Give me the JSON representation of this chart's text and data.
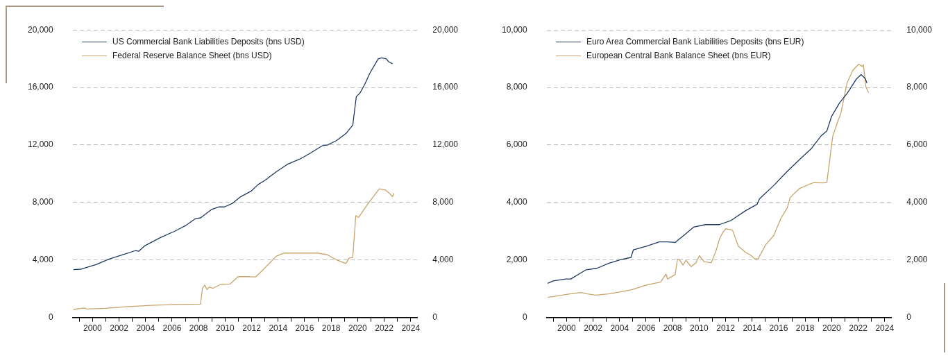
{
  "chart_data": [
    {
      "type": "line",
      "legend": "top left",
      "grid": "y",
      "xlim": [
        1998.5,
        2024.5
      ],
      "xticks": [
        {
          "value": 1999,
          "label": null
        },
        2000,
        {
          "value": 2001,
          "label": null
        },
        2002,
        {
          "value": 2003,
          "label": null
        },
        2004,
        {
          "value": 2005,
          "label": null
        },
        2006,
        {
          "value": 2007,
          "label": null
        },
        2008,
        {
          "value": 2009,
          "label": null
        },
        2010,
        {
          "value": 2011,
          "label": null
        },
        2012,
        {
          "value": 2013,
          "label": null
        },
        2014,
        {
          "value": 2015,
          "label": null
        },
        2016,
        {
          "value": 2017,
          "label": null
        },
        2018,
        {
          "value": 2019,
          "label": null
        },
        2020,
        {
          "value": 2021,
          "label": null
        },
        2022,
        {
          "value": 2023,
          "label": null
        },
        2024
      ],
      "ylim": [
        0,
        20000
      ],
      "yticks": [
        0,
        {
          "value": 4000,
          "label": "4,000"
        },
        {
          "value": 8000,
          "label": "8,000"
        },
        {
          "value": 12000,
          "label": "12,000"
        },
        {
          "value": 16000,
          "label": "16,000"
        },
        {
          "value": 20000,
          "label": "20,000"
        }
      ],
      "y2lim": [
        0,
        20000
      ],
      "y2ticks": [
        0,
        {
          "value": 4000,
          "label": "4,000"
        },
        {
          "value": 8000,
          "label": "8,000"
        },
        {
          "value": 12000,
          "label": "12,000"
        },
        {
          "value": 16000,
          "label": "16,000"
        },
        {
          "value": 20000,
          "label": "20,000"
        }
      ],
      "series": [
        {
          "name": "US Commercial Bank Liabilities Deposits (bns USD)",
          "color": "#1f3864",
          "x": [
            1998.55,
            1999.13,
            2000.26,
            2001.22,
            2002.36,
            2003.23,
            2003.49,
            2003.93,
            2005.15,
            2006.2,
            2007.07,
            2007.77,
            2008.15,
            2008.99,
            2009.51,
            2009.95,
            2010.56,
            2011.17,
            2011.95,
            2012.48,
            2013.0,
            2013.87,
            2014.75,
            2015.62,
            2016.32,
            2017.36,
            2017.71,
            2018.41,
            2019.11,
            2019.63,
            2019.9,
            2020.16,
            2020.51,
            2020.94,
            2021.55,
            2021.81,
            2022.16,
            2022.34,
            2022.63
          ],
          "values": [
            3330,
            3360,
            3680,
            4050,
            4390,
            4650,
            4610,
            4980,
            5570,
            6000,
            6420,
            6880,
            6930,
            7520,
            7690,
            7690,
            7940,
            8400,
            8780,
            9240,
            9540,
            10140,
            10680,
            11010,
            11370,
            11960,
            11990,
            12310,
            12790,
            13380,
            15370,
            15590,
            16170,
            17030,
            17990,
            18060,
            17990,
            17790,
            17650
          ]
        },
        {
          "name": "Federal Reserve Balance Sheet (bns USD)",
          "color": "#c9a46a",
          "x": [
            1998.55,
            1999.39,
            1999.56,
            2000.96,
            2002.71,
            2004.45,
            2006.2,
            2008.15,
            2008.29,
            2008.46,
            2008.64,
            2008.81,
            2009.08,
            2009.69,
            2010.38,
            2011.0,
            2011.43,
            2012.3,
            2012.83,
            2013.87,
            2014.49,
            2015.79,
            2017.02,
            2017.71,
            2018.41,
            2019.11,
            2019.37,
            2019.63,
            2019.86,
            2020.07,
            2020.86,
            2021.64,
            2022.08,
            2022.43,
            2022.63,
            2022.74
          ],
          "values": [
            560,
            660,
            590,
            640,
            760,
            840,
            900,
            930,
            2030,
            2250,
            1940,
            2110,
            2030,
            2310,
            2330,
            2850,
            2840,
            2820,
            3290,
            4270,
            4490,
            4480,
            4480,
            4360,
            4000,
            3750,
            4140,
            4170,
            7090,
            6960,
            8020,
            8950,
            8870,
            8610,
            8400,
            8650
          ]
        }
      ]
    },
    {
      "type": "line",
      "legend": "top left",
      "grid": "y",
      "xlim": [
        1998.5,
        2024.5
      ],
      "xticks": [
        {
          "value": 1999,
          "label": null
        },
        2000,
        {
          "value": 2001,
          "label": null
        },
        2002,
        {
          "value": 2003,
          "label": null
        },
        2004,
        {
          "value": 2005,
          "label": null
        },
        2006,
        {
          "value": 2007,
          "label": null
        },
        2008,
        {
          "value": 2009,
          "label": null
        },
        2010,
        {
          "value": 2011,
          "label": null
        },
        2012,
        {
          "value": 2013,
          "label": null
        },
        2014,
        {
          "value": 2015,
          "label": null
        },
        2016,
        {
          "value": 2017,
          "label": null
        },
        2018,
        {
          "value": 2019,
          "label": null
        },
        2020,
        {
          "value": 2021,
          "label": null
        },
        2022,
        {
          "value": 2023,
          "label": null
        },
        2024
      ],
      "ylim": [
        0,
        10000
      ],
      "yticks": [
        0,
        {
          "value": 2000,
          "label": "2,000"
        },
        {
          "value": 4000,
          "label": "4,000"
        },
        {
          "value": 6000,
          "label": "6,000"
        },
        {
          "value": 8000,
          "label": "8,000"
        },
        {
          "value": 10000,
          "label": "10,000"
        }
      ],
      "y2lim": [
        0,
        10000
      ],
      "y2ticks": [
        0,
        {
          "value": 2000,
          "label": "2,000"
        },
        {
          "value": 4000,
          "label": "4,000"
        },
        {
          "value": 6000,
          "label": "6,000"
        },
        {
          "value": 8000,
          "label": "8,000"
        },
        {
          "value": 10000,
          "label": "10,000"
        }
      ],
      "series": [
        {
          "name": "Euro Area Commercial Bank Liabilities Deposits (bns EUR)",
          "color": "#1f3864",
          "x": [
            1998.58,
            1998.99,
            1999.96,
            2000.32,
            2001.48,
            2002.28,
            2003.17,
            2004.06,
            2004.86,
            2005.04,
            2006.02,
            2007.0,
            2007.62,
            2008.19,
            2009.04,
            2009.58,
            2010.47,
            2011.54,
            2012.43,
            2013.49,
            2014.38,
            2014.56,
            2015.63,
            2016.52,
            2017.59,
            2018.48,
            2019.19,
            2019.64,
            2019.99,
            2020.62,
            2021.15,
            2021.86,
            2022.22,
            2022.54,
            2022.66
          ],
          "values": [
            1190,
            1270,
            1340,
            1340,
            1660,
            1710,
            1880,
            2010,
            2090,
            2350,
            2480,
            2630,
            2630,
            2610,
            2930,
            3140,
            3230,
            3230,
            3380,
            3710,
            3940,
            4130,
            4590,
            5020,
            5500,
            5880,
            6310,
            6490,
            6990,
            7480,
            7780,
            8290,
            8450,
            8310,
            8150
          ]
        },
        {
          "name": "European Central Bank Balance Sheet (bns EUR)",
          "color": "#c9a46a",
          "x": [
            1998.58,
            1999.43,
            2000.5,
            2001.12,
            2001.57,
            2002.19,
            2003.17,
            2004.06,
            2004.86,
            2006.02,
            2007.09,
            2007.5,
            2007.62,
            2008.19,
            2008.37,
            2008.51,
            2008.78,
            2009.01,
            2009.4,
            2009.76,
            2010.02,
            2010.38,
            2010.91,
            2011.27,
            2011.54,
            2011.8,
            2012.04,
            2012.52,
            2012.96,
            2013.49,
            2013.94,
            2014.21,
            2014.47,
            2015.01,
            2015.63,
            2016.17,
            2016.66,
            2016.88,
            2017.59,
            2018.3,
            2018.66,
            2019.37,
            2019.64,
            2020.08,
            2020.44,
            2020.7,
            2021.15,
            2021.6,
            2022.04,
            2022.31,
            2022.4,
            2022.58,
            2022.79
          ],
          "values": [
            700,
            760,
            840,
            870,
            820,
            780,
            820,
            890,
            960,
            1130,
            1230,
            1510,
            1340,
            1490,
            2030,
            2020,
            1820,
            1990,
            1770,
            1900,
            2150,
            1940,
            1900,
            2310,
            2730,
            2970,
            3090,
            3040,
            2480,
            2270,
            2150,
            2030,
            2050,
            2520,
            2850,
            3450,
            3820,
            4180,
            4490,
            4630,
            4690,
            4680,
            4700,
            6300,
            6790,
            7110,
            8140,
            8600,
            8810,
            8730,
            8790,
            8020,
            7820
          ]
        }
      ]
    }
  ]
}
